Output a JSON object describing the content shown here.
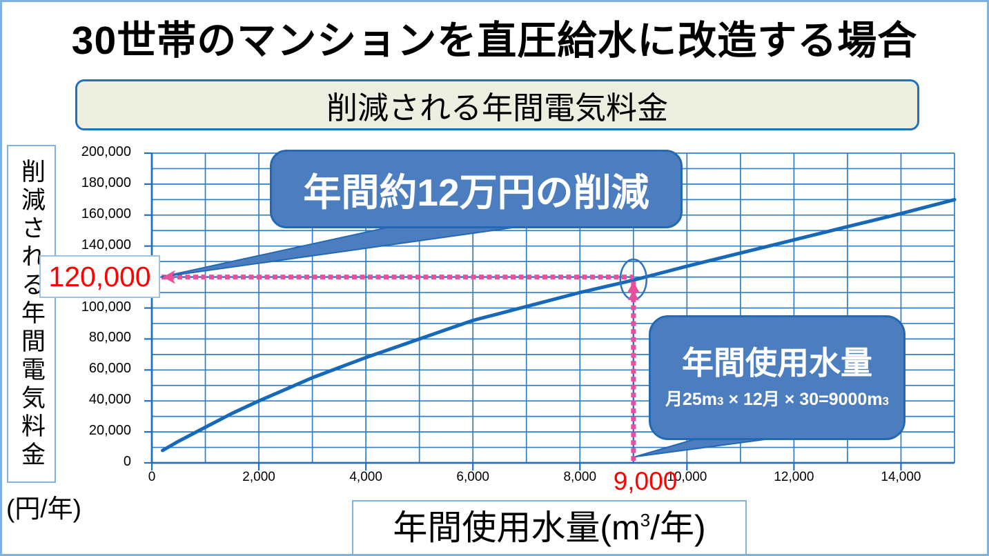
{
  "page": {
    "title": "30世帯のマンションを直圧給水に改造する場合"
  },
  "subtitle": {
    "text": "削減される年間電気料金"
  },
  "y_axis": {
    "vertical_label": "削減される年間電気料金",
    "unit": "(円/年)"
  },
  "x_axis": {
    "label_prefix": "年間使用水量(m",
    "label_sup": "3",
    "label_suffix": "/年)"
  },
  "annotations": {
    "saving_value": "120,000",
    "usage_value": "9,000",
    "callout_saving": "年間約12万円の削減",
    "callout_usage_title": "年間使用水量",
    "callout_usage_formula": [
      "月25m",
      "3",
      " × 12月 × 30=9000m",
      "3"
    ]
  },
  "colors": {
    "grid": "#2E7FC9",
    "axis": "#1F70C1",
    "curve": "#1668B8",
    "callout_fill": "#4C7EBF",
    "callout_border": "#2268B4",
    "dot_pink": "#E8509B",
    "dot_blue": "#2F73BE",
    "highlight_text": "#FF0000",
    "subtitle_bg": "#ECEFE0",
    "outer_border": "#7FB2DF"
  },
  "chart_data": {
    "type": "line",
    "title": "削減される年間電気料金",
    "xlabel": "年間使用水量(m³/年)",
    "ylabel": "削減される年間電気料金(円/年)",
    "xlim": [
      0,
      15000
    ],
    "ylim": [
      0,
      200000
    ],
    "grid_x_step": 1000,
    "grid_y_step": 10000,
    "x_tick_step": 2000,
    "y_tick_step": 20000,
    "x_ticks": [
      "0",
      "2,000",
      "4,000",
      "6,000",
      "8,000",
      "10,000",
      "12,000",
      "14,000"
    ],
    "y_ticks": [
      "0",
      "20,000",
      "40,000",
      "60,000",
      "80,000",
      "100,000",
      "120,000",
      "140,000",
      "160,000",
      "180,000",
      "200,000"
    ],
    "grid": true,
    "legend": "none",
    "series": [
      {
        "points": [
          [
            200,
            8000
          ],
          [
            500,
            14000
          ],
          [
            1000,
            23000
          ],
          [
            1500,
            32000
          ],
          [
            2000,
            40000
          ],
          [
            2500,
            47500
          ],
          [
            3000,
            55000
          ],
          [
            3500,
            61500
          ],
          [
            4000,
            68000
          ],
          [
            4500,
            74000
          ],
          [
            5000,
            80000
          ],
          [
            5500,
            86000
          ],
          [
            6000,
            92000
          ],
          [
            6500,
            96500
          ],
          [
            7000,
            101000
          ],
          [
            7500,
            105500
          ],
          [
            8000,
            110000
          ],
          [
            8500,
            114000
          ],
          [
            9000,
            118000
          ],
          [
            9500,
            122500
          ],
          [
            10000,
            127000
          ],
          [
            11000,
            135500
          ],
          [
            12000,
            144000
          ],
          [
            13000,
            152500
          ],
          [
            14000,
            161000
          ],
          [
            15000,
            170000
          ]
        ]
      }
    ],
    "highlight": {
      "x": 9000,
      "y": 120000,
      "x_label": "9,000",
      "y_label": "120,000"
    }
  }
}
